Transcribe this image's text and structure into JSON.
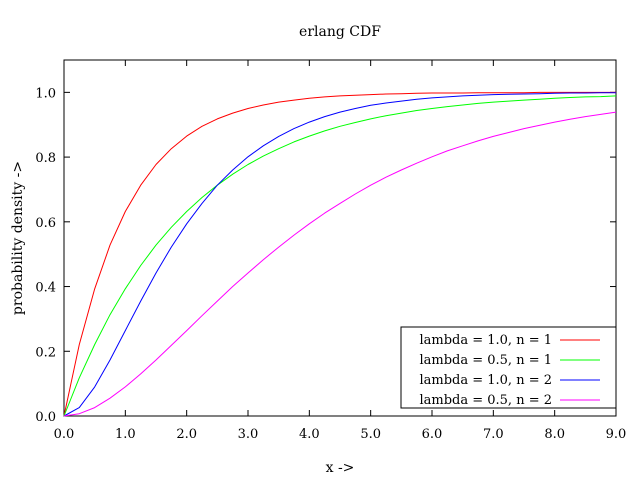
{
  "chart_data": {
    "type": "line",
    "title": "erlang CDF",
    "xlabel": "x ->",
    "ylabel": "probability density ->",
    "xlim": [
      0,
      9
    ],
    "ylim": [
      0,
      1.1
    ],
    "x_ticks": [
      {
        "value": 0,
        "label": "0.0"
      },
      {
        "value": 1,
        "label": "1.0"
      },
      {
        "value": 2,
        "label": "2.0"
      },
      {
        "value": 3,
        "label": "3.0"
      },
      {
        "value": 4,
        "label": "4.0"
      },
      {
        "value": 5,
        "label": "5.0"
      },
      {
        "value": 6,
        "label": "6.0"
      },
      {
        "value": 7,
        "label": "7.0"
      },
      {
        "value": 8,
        "label": "8.0"
      },
      {
        "value": 9,
        "label": "9.0"
      }
    ],
    "y_ticks": [
      {
        "value": 0,
        "label": "0.0"
      },
      {
        "value": 0.2,
        "label": "0.2"
      },
      {
        "value": 0.4,
        "label": "0.4"
      },
      {
        "value": 0.6,
        "label": "0.6"
      },
      {
        "value": 0.8,
        "label": "0.8"
      },
      {
        "value": 1.0,
        "label": "1.0"
      }
    ],
    "grid": false,
    "legend_position": "bottom-right",
    "x": [
      0,
      0.25,
      0.5,
      0.75,
      1,
      1.25,
      1.5,
      1.75,
      2,
      2.25,
      2.5,
      2.75,
      3,
      3.25,
      3.5,
      3.75,
      4,
      4.25,
      4.5,
      4.75,
      5,
      5.25,
      5.5,
      5.75,
      6,
      6.25,
      6.5,
      6.75,
      7,
      7.25,
      7.5,
      7.75,
      8,
      8.25,
      8.5,
      8.75,
      9
    ],
    "series": [
      {
        "name": "lambda = 1.0, n = 1",
        "color": "#ff0000",
        "values": [
          0,
          0.221,
          0.393,
          0.528,
          0.632,
          0.713,
          0.777,
          0.826,
          0.865,
          0.895,
          0.918,
          0.936,
          0.95,
          0.961,
          0.97,
          0.976,
          0.982,
          0.986,
          0.989,
          0.991,
          0.993,
          0.995,
          0.996,
          0.997,
          0.998,
          0.998,
          0.998,
          0.999,
          0.999,
          0.999,
          0.999,
          1.0,
          1.0,
          1.0,
          1.0,
          1.0,
          1.0
        ]
      },
      {
        "name": "lambda = 0.5, n = 1",
        "color": "#00ff00",
        "values": [
          0,
          0.118,
          0.221,
          0.313,
          0.393,
          0.465,
          0.528,
          0.583,
          0.632,
          0.675,
          0.713,
          0.747,
          0.777,
          0.803,
          0.826,
          0.847,
          0.865,
          0.881,
          0.895,
          0.907,
          0.918,
          0.928,
          0.936,
          0.944,
          0.95,
          0.956,
          0.961,
          0.966,
          0.97,
          0.973,
          0.976,
          0.979,
          0.982,
          0.984,
          0.986,
          0.987,
          0.989
        ]
      },
      {
        "name": "lambda = 1.0, n = 2",
        "color": "#0000ff",
        "values": [
          0,
          0.026,
          0.09,
          0.173,
          0.264,
          0.355,
          0.442,
          0.522,
          0.594,
          0.657,
          0.713,
          0.76,
          0.801,
          0.835,
          0.864,
          0.888,
          0.908,
          0.925,
          0.939,
          0.95,
          0.96,
          0.967,
          0.973,
          0.979,
          0.983,
          0.986,
          0.989,
          0.991,
          0.993,
          0.994,
          0.995,
          0.996,
          0.997,
          0.998,
          0.998,
          0.999,
          0.999
        ]
      },
      {
        "name": "lambda = 0.5, n = 2",
        "color": "#ff00ff",
        "values": [
          0,
          0.007,
          0.026,
          0.055,
          0.09,
          0.13,
          0.173,
          0.218,
          0.264,
          0.31,
          0.355,
          0.4,
          0.442,
          0.483,
          0.522,
          0.559,
          0.594,
          0.627,
          0.657,
          0.686,
          0.713,
          0.738,
          0.76,
          0.781,
          0.801,
          0.819,
          0.835,
          0.85,
          0.864,
          0.876,
          0.888,
          0.898,
          0.908,
          0.917,
          0.925,
          0.932,
          0.939
        ]
      }
    ]
  }
}
